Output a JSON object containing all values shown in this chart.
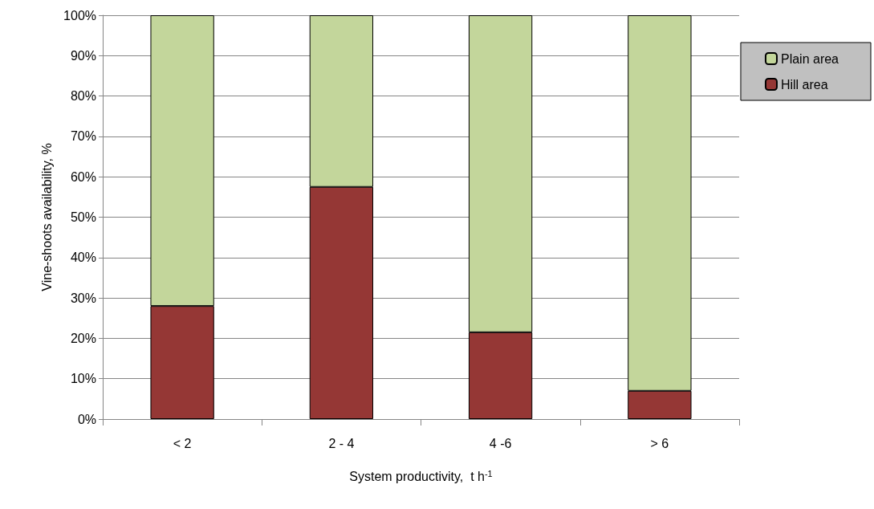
{
  "chart_data": {
    "type": "bar",
    "stacked": true,
    "xlabel": "System productivity,  t h$^{-1}$",
    "ylabel": "Vine-shoots availability, %",
    "categories": [
      "< 2",
      "2 - 4",
      "4 -6",
      "> 6"
    ],
    "series": [
      {
        "name": "Hill area",
        "color": "#953735",
        "values": [
          28,
          57.5,
          21.5,
          7
        ]
      },
      {
        "name": "Plain area",
        "color": "#c3d69b",
        "values": [
          72,
          42.5,
          78.5,
          93
        ]
      }
    ],
    "ylim": [
      0,
      100
    ],
    "yticks": [
      {
        "value": 0,
        "label": "0%"
      },
      {
        "value": 10,
        "label": "10%"
      },
      {
        "value": 20,
        "label": "20%"
      },
      {
        "value": 30,
        "label": "30%"
      },
      {
        "value": 40,
        "label": "40%"
      },
      {
        "value": 50,
        "label": "50%"
      },
      {
        "value": 60,
        "label": "60%"
      },
      {
        "value": 70,
        "label": "70%"
      },
      {
        "value": 80,
        "label": "80%"
      },
      {
        "value": 90,
        "label": "90%"
      },
      {
        "value": 100,
        "label": "100%"
      }
    ],
    "grid": "y",
    "legend": "right"
  }
}
